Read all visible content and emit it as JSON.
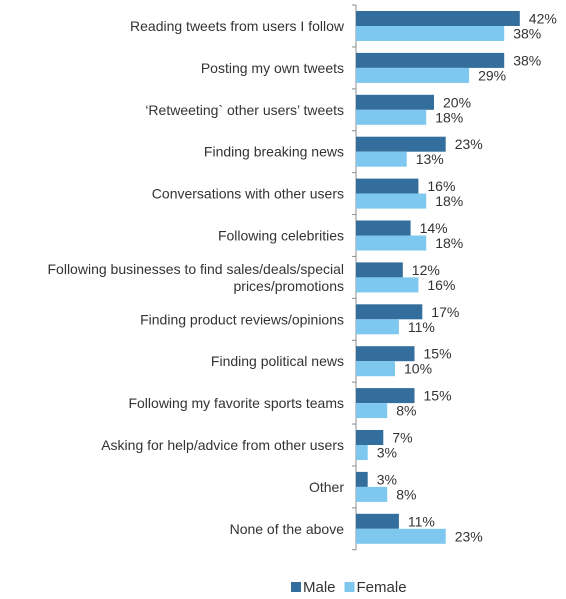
{
  "chart_data": {
    "type": "bar",
    "orientation": "horizontal",
    "categories": [
      [
        "Reading tweets from users I follow"
      ],
      [
        "Posting my own tweets"
      ],
      [
        "‘Retweeting` other users’ tweets"
      ],
      [
        "Finding breaking news"
      ],
      [
        "Conversations with other users"
      ],
      [
        "Following celebrities"
      ],
      [
        "Following businesses to find sales/deals/special",
        "prices/promotions"
      ],
      [
        "Finding product reviews/opinions"
      ],
      [
        "Finding political news"
      ],
      [
        "Following my favorite sports teams"
      ],
      [
        "Asking for help/advice from other users"
      ],
      [
        "Other"
      ],
      [
        "None of the above"
      ]
    ],
    "series": [
      {
        "name": "Male",
        "color": "#336e9c",
        "values": [
          42,
          38,
          20,
          23,
          16,
          14,
          12,
          17,
          15,
          15,
          7,
          3,
          11
        ],
        "labels": [
          "42%",
          "38%",
          "20%",
          "23%",
          "16%",
          "14%",
          "12%",
          "17%",
          "15%",
          "15%",
          "7%",
          "3%",
          "11%"
        ]
      },
      {
        "name": "Female",
        "color": "#7ec8ef",
        "values": [
          38,
          29,
          18,
          13,
          18,
          18,
          16,
          11,
          10,
          8,
          3,
          8,
          23
        ],
        "labels": [
          "38%",
          "29%",
          "18%",
          "13%",
          "18%",
          "18%",
          "16%",
          "11%",
          "10%",
          "8%",
          "3%",
          "8%",
          "23%"
        ]
      }
    ],
    "title": "",
    "xlabel": "",
    "ylabel": "",
    "xlim": [
      0,
      45
    ],
    "grid": false,
    "legend_position": "bottom"
  }
}
